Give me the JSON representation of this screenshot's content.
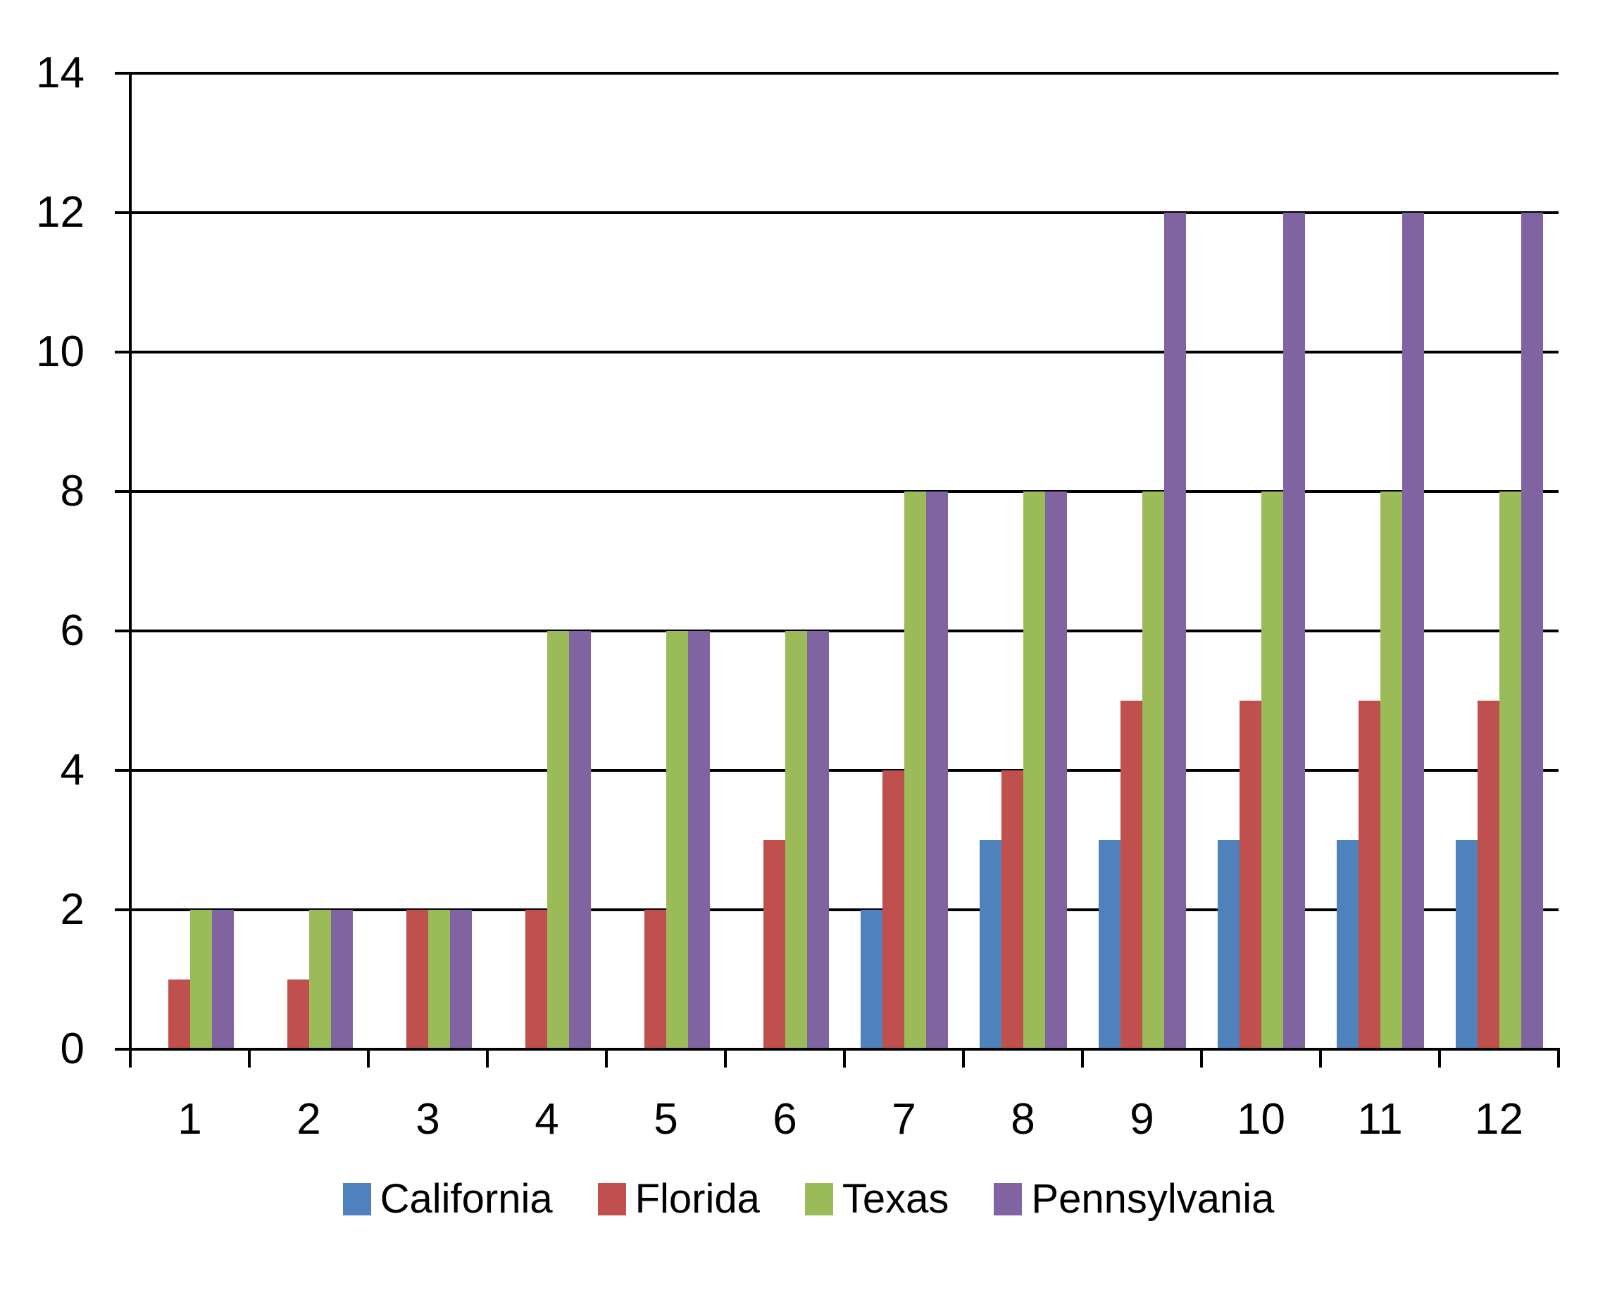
{
  "page": {
    "background": "#FFFFFF"
  },
  "chart_data": {
    "type": "bar",
    "title": "",
    "xlabel": "",
    "ylabel": "",
    "categories": [
      "1",
      "2",
      "3",
      "4",
      "5",
      "6",
      "7",
      "8",
      "9",
      "10",
      "11",
      "12"
    ],
    "series": [
      {
        "name": "California",
        "color": "#4F81BD",
        "values": [
          0,
          0,
          0,
          0,
          0,
          0,
          2,
          3,
          3,
          3,
          3,
          3
        ]
      },
      {
        "name": "Florida",
        "color": "#C0504D",
        "values": [
          1,
          1,
          2,
          2,
          2,
          3,
          4,
          4,
          5,
          5,
          5,
          5
        ]
      },
      {
        "name": "Texas",
        "color": "#9BBB59",
        "values": [
          2,
          2,
          2,
          6,
          6,
          6,
          8,
          8,
          8,
          8,
          8,
          8
        ]
      },
      {
        "name": "Pennsylvania",
        "color": "#8064A2",
        "values": [
          2,
          2,
          2,
          6,
          6,
          6,
          8,
          8,
          12,
          12,
          12,
          12
        ]
      }
    ],
    "ylim": [
      0,
      14
    ],
    "ytick_step": 2,
    "yticks": [
      0,
      2,
      4,
      6,
      8,
      10,
      12,
      14
    ],
    "grid": true,
    "gridline_color": "#000000",
    "axis_color": "#000000",
    "legend_position": "bottom"
  }
}
